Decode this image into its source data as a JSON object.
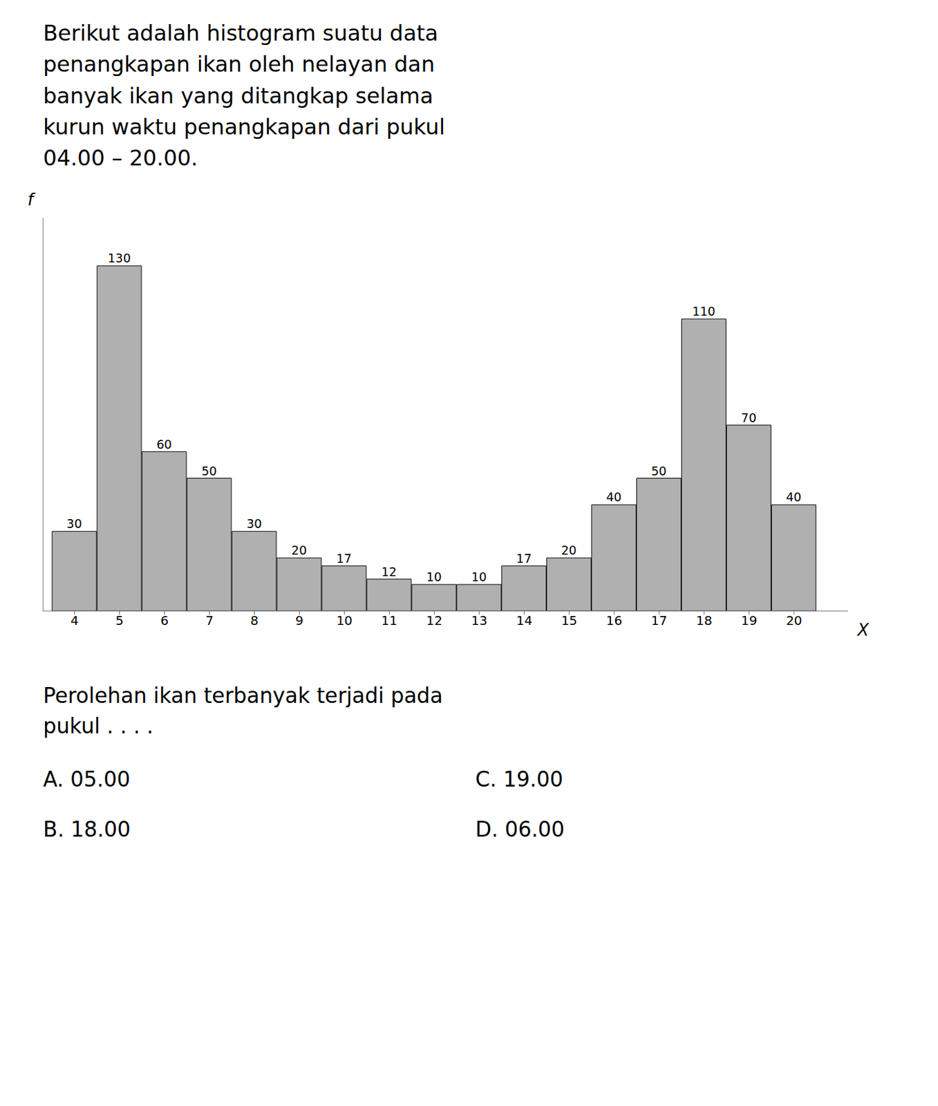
{
  "chart_data": {
    "type": "bar",
    "title": "Berikut adalah histogram suatu data\npenangkapan ikan oleh nelayan dan\nbanyak ikan yang ditangkap selama\nkurun waktu penangkapan dari pukul\n04.00 – 20.00.",
    "x": [
      4,
      5,
      6,
      7,
      8,
      9,
      10,
      11,
      12,
      13,
      14,
      15,
      16,
      17,
      18,
      19,
      20
    ],
    "values": [
      30,
      130,
      60,
      50,
      30,
      20,
      17,
      12,
      10,
      10,
      17,
      20,
      40,
      50,
      110,
      70,
      40
    ],
    "color": "#b0b0b0",
    "xlabel": "X",
    "ylabel": "f",
    "xlim": [
      3.3,
      21.2
    ],
    "xticks": [
      4,
      5,
      6,
      7,
      8,
      9,
      10,
      11,
      12,
      13,
      14,
      15,
      16,
      17,
      18,
      19,
      20
    ],
    "ylim": [
      0,
      148
    ],
    "tick_labels": "x",
    "grid": false,
    "data_labels": true,
    "annotations": [
      "Perolehan ikan terbanyak terjadi pada\npukul . . . .",
      "A. 05.00",
      "B. 18.00",
      "C. 19.00",
      "D. 06.00"
    ]
  }
}
